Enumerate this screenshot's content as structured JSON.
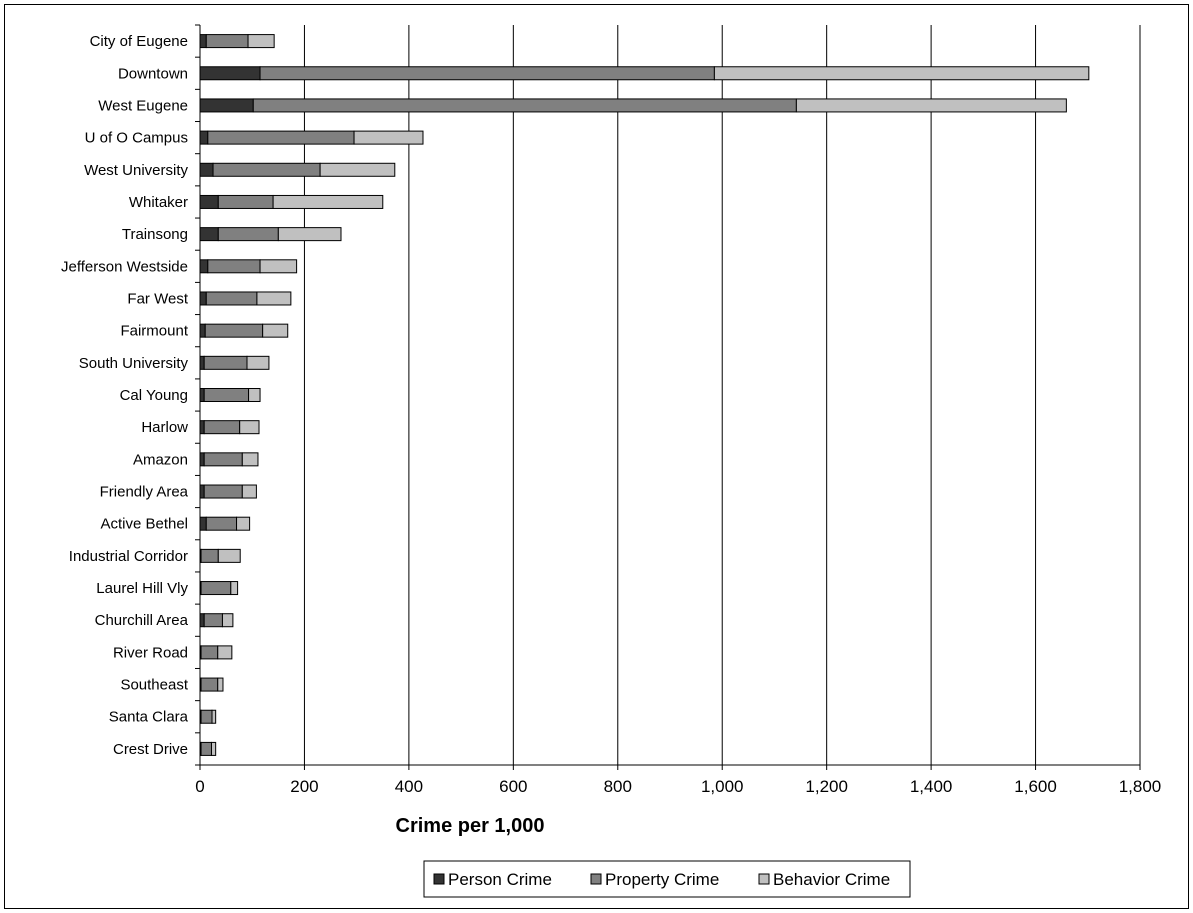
{
  "chart_data": {
    "type": "bar",
    "orientation": "horizontal",
    "stacked": true,
    "title": "",
    "xlabel": "Crime per 1,000",
    "ylabel": "",
    "xlim": [
      0,
      1800
    ],
    "xticks": [
      0,
      200,
      400,
      600,
      800,
      1000,
      1200,
      1400,
      1600,
      1800
    ],
    "xtick_labels": [
      "0",
      "200",
      "400",
      "600",
      "800",
      "1,000",
      "1,200",
      "1,400",
      "1,600",
      "1,800"
    ],
    "grid": "vertical",
    "legend_position": "bottom",
    "categories": [
      "City of Eugene",
      "Downtown",
      "West Eugene",
      "U of O Campus",
      "West University",
      "Whitaker",
      "Trainsong",
      "Jefferson Westside",
      "Far West",
      "Fairmount",
      "South University",
      "Cal Young",
      "Harlow",
      "Amazon",
      "Friendly Area",
      "Active Bethel",
      "Industrial Corridor",
      "Laurel Hill Vly",
      "Churchill Area",
      "River Road",
      "Southeast",
      "Santa Clara",
      "Crest Drive"
    ],
    "series": [
      {
        "name": "Person Crime",
        "color": "#333333",
        "values": [
          12,
          115,
          102,
          15,
          25,
          35,
          35,
          15,
          12,
          10,
          8,
          8,
          8,
          8,
          8,
          12,
          2,
          2,
          8,
          2,
          2,
          2,
          2
        ]
      },
      {
        "name": "Property Crime",
        "color": "#808080",
        "values": [
          80,
          870,
          1040,
          280,
          205,
          105,
          115,
          100,
          97,
          110,
          82,
          85,
          68,
          73,
          73,
          58,
          33,
          57,
          35,
          32,
          32,
          21,
          20
        ]
      },
      {
        "name": "Behavior Crime",
        "color": "#c0c0c0",
        "values": [
          50,
          717,
          517,
          132,
          143,
          210,
          120,
          70,
          65,
          48,
          42,
          22,
          37,
          30,
          27,
          25,
          42,
          13,
          20,
          27,
          10,
          7,
          8
        ]
      }
    ]
  }
}
